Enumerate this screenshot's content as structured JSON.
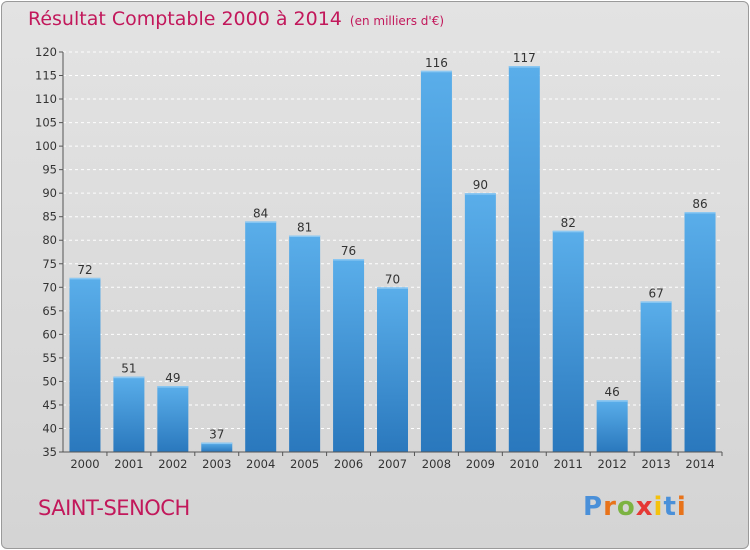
{
  "title": "Résultat Comptable 2000 à 2014",
  "unit_label": "(en milliers d'€)",
  "commune": "SAINT-SENOCH",
  "logo": {
    "text": "Proxiti",
    "colors": [
      "#4a90d9",
      "#e8731a",
      "#7cb342",
      "#e53935",
      "#f4c20d",
      "#4a90d9",
      "#e8731a"
    ]
  },
  "colors": {
    "accent": "#c2185b",
    "bar": "#3b8fd6"
  },
  "chart_data": {
    "type": "bar",
    "categories": [
      "2000",
      "2001",
      "2002",
      "2003",
      "2004",
      "2005",
      "2006",
      "2007",
      "2008",
      "2009",
      "2010",
      "2011",
      "2012",
      "2013",
      "2014"
    ],
    "values": [
      72,
      51,
      49,
      37,
      84,
      81,
      76,
      70,
      116,
      90,
      117,
      82,
      46,
      67,
      86
    ],
    "ylim": [
      35,
      120
    ],
    "yticks": [
      35,
      40,
      45,
      50,
      55,
      60,
      65,
      70,
      75,
      80,
      85,
      90,
      95,
      100,
      105,
      110,
      115,
      120
    ],
    "grid": true,
    "data_labels": true
  }
}
